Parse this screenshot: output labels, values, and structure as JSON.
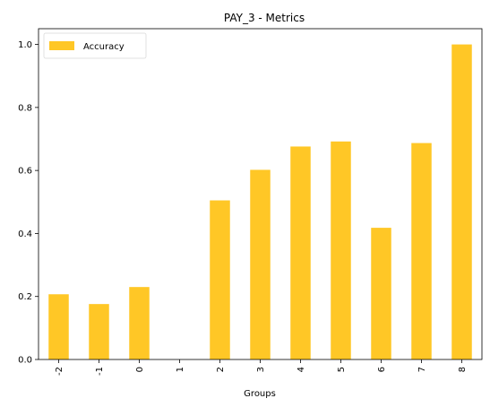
{
  "chart_data": {
    "type": "bar",
    "title": "PAY_3 - Metrics",
    "xlabel": "Groups",
    "ylabel": "",
    "categories": [
      "-2",
      "-1",
      "0",
      "1",
      "2",
      "3",
      "4",
      "5",
      "6",
      "7",
      "8"
    ],
    "series": [
      {
        "name": "Accuracy",
        "values": [
          0.207,
          0.176,
          0.23,
          0.0,
          0.505,
          0.602,
          0.676,
          0.692,
          0.418,
          0.687,
          1.0
        ],
        "color": "#FFC726"
      }
    ],
    "ylim": [
      0,
      1.05
    ],
    "yticks": [
      "0.0",
      "0.2",
      "0.4",
      "0.6",
      "0.8",
      "1.0"
    ],
    "legend": "top-left",
    "grid": false
  }
}
